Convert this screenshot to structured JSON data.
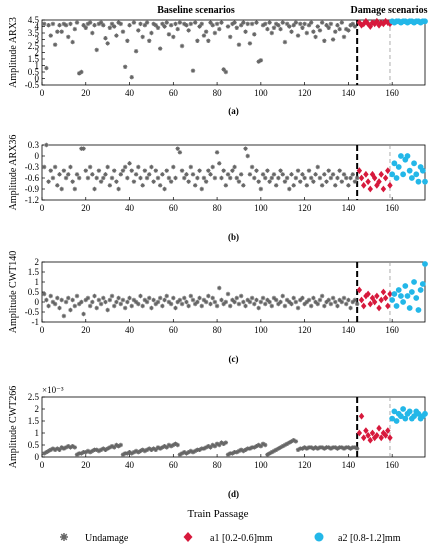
{
  "chart_data": {
    "type": "scatter",
    "header_baseline": "Baseline scenarios",
    "header_damage": "Damage scenarios",
    "xlabel": "Train Passage",
    "xlim": [
      0,
      175
    ],
    "xticks": [
      0,
      20,
      40,
      60,
      80,
      100,
      120,
      140,
      160
    ],
    "damage_onset_x": 144,
    "a2_onset_x": 159,
    "legend": {
      "undamage": "Undamage",
      "a1": "a1 [0.2-0.6]mm",
      "a2": "a2 [0.8-1.2]mm"
    },
    "colors": {
      "undamage": "#666666",
      "a1": "#d7193c",
      "a2": "#23b7e8"
    },
    "panels": [
      {
        "caption": "(a)",
        "ylabel": "Amplitude ARX3",
        "ylim": [
          -0.5,
          4.5
        ],
        "yticks": [
          "4.5",
          "4",
          "3.5",
          "3",
          "2.5",
          "2",
          "1.5",
          "1",
          "0.5",
          "0",
          "-0.5"
        ],
        "yticks_values": [
          4.5,
          4,
          3.5,
          3,
          2.5,
          2,
          1.5,
          1,
          0.5,
          0,
          -0.5
        ],
        "exponent": "",
        "series": {
          "undamage": [
            4.2,
            0.8,
            4.1,
            3.3,
            4.2,
            2.6,
            3.6,
            4.1,
            3.6,
            4.2,
            4.1,
            3.2,
            4.2,
            2.8,
            3.8,
            4.3,
            0.4,
            0.5,
            4.1,
            3.9,
            4.2,
            4.3,
            3.5,
            4.1,
            2.2,
            4.2,
            4.3,
            4.1,
            3.1,
            2.7,
            3.9,
            4.2,
            4.0,
            3.3,
            4.3,
            4.2,
            3.6,
            0.9,
            2.9,
            4.1,
            0.1,
            4.3,
            2.1,
            3.7,
            4.2,
            3.2,
            4.1,
            4.3,
            2.9,
            3.5,
            4.2,
            4.1,
            3.9,
            2.3,
            4.2,
            4.0,
            4.3,
            3.4,
            4.1,
            3.2,
            4.2,
            3.8,
            4.3,
            2.5,
            4.2,
            4.1,
            3.7,
            4.2,
            0.6,
            4.3,
            2.9,
            4.0,
            4.2,
            3.3,
            3.6,
            2.9,
            4.3,
            4.1,
            3.5,
            4.2,
            3.8,
            4.3,
            0.7,
            0.5,
            4.0,
            3.2,
            4.2,
            4.3,
            3.9,
            2.6,
            4.1,
            4.3,
            3.6,
            4.2,
            2.7,
            4.2,
            3.4,
            4.3,
            1.3,
            1.4,
            4.1,
            4.2,
            3.8,
            4.3,
            3.5,
            3.9,
            4.2,
            4.1,
            3.8,
            4.3,
            2.8,
            4.2,
            4.0,
            3.6,
            4.1,
            4.3,
            3.3,
            4.2,
            3.9,
            4.2,
            3.5,
            4.1,
            4.3,
            3.6,
            3.2,
            4.0,
            3.7,
            4.3,
            2.9,
            4.1,
            3.9,
            4.2,
            3.0,
            3.6,
            4.1,
            3.8,
            4.3,
            3.2,
            3.8,
            3.7,
            4.1,
            4.2,
            4.0
          ],
          "a1": [
            4.3,
            4.1,
            4.2,
            4.4,
            4.2,
            4.0,
            4.3,
            4.2,
            4.4,
            4.1,
            4.3,
            4.2,
            4.4,
            4.3,
            4.2
          ],
          "a2": [
            4.4,
            4.3,
            4.4,
            4.4,
            4.3,
            4.4,
            4.4,
            4.3,
            4.4,
            4.4,
            4.3,
            4.4,
            4.4,
            4.3,
            4.4,
            4.4
          ]
        }
      },
      {
        "caption": "(b)",
        "ylabel": "Amplitude ARX36",
        "ylim": [
          -1.2,
          0.3
        ],
        "yticks": [
          "0.3",
          "0",
          "-0.3",
          "-0.6",
          "-0.9",
          "-1.2"
        ],
        "yticks_values": [
          0.3,
          0,
          -0.3,
          -0.6,
          -0.9,
          -1.2
        ],
        "exponent": "",
        "series": {
          "undamage": [
            -0.3,
            0.3,
            -0.7,
            -0.4,
            -0.6,
            -0.3,
            -0.8,
            -0.5,
            -0.9,
            -0.4,
            -0.6,
            -0.5,
            -0.3,
            -0.7,
            -0.9,
            -0.5,
            -0.6,
            0.2,
            0.2,
            -0.4,
            -0.6,
            -0.3,
            -0.5,
            -0.9,
            -0.6,
            -0.4,
            -0.7,
            -0.6,
            -0.5,
            -0.3,
            -0.8,
            -0.6,
            -0.4,
            -0.7,
            -0.9,
            -0.5,
            -0.4,
            -0.3,
            -0.6,
            -0.2,
            -0.4,
            -0.7,
            -0.5,
            -0.3,
            -0.6,
            -0.8,
            -0.4,
            -0.6,
            -0.5,
            -0.3,
            -0.7,
            -0.4,
            -0.6,
            -0.8,
            -0.5,
            -0.9,
            -0.4,
            -0.6,
            -0.7,
            -0.3,
            -0.6,
            0.2,
            0.1,
            -0.4,
            -0.6,
            -0.5,
            -0.7,
            -0.3,
            -0.5,
            -0.8,
            -0.6,
            -0.4,
            -0.9,
            -0.6,
            -0.7,
            -0.4,
            -0.5,
            -0.3,
            -0.6,
            0.1,
            -0.2,
            -0.6,
            -0.4,
            -0.8,
            -0.5,
            -0.6,
            -0.4,
            -0.3,
            -0.6,
            -0.7,
            -0.5,
            -0.8,
            0.2,
            0.0,
            -0.5,
            -0.3,
            -0.6,
            -0.4,
            -0.7,
            -0.9,
            -0.5,
            -0.6,
            -0.4,
            -0.7,
            -0.6,
            -0.5,
            -0.8,
            -0.6,
            -0.4,
            -0.5,
            -0.7,
            -0.6,
            -0.9,
            -0.5,
            -0.8,
            -0.6,
            -0.4,
            -0.7,
            -0.5,
            -0.6,
            -0.8,
            -0.4,
            -0.6,
            -0.7,
            -0.5,
            -0.3,
            -0.6,
            -0.8,
            -0.5,
            -0.7,
            -0.4,
            -0.6,
            -0.5,
            -0.8,
            -0.6,
            -0.4,
            -0.7,
            -0.5,
            -0.6,
            -0.8,
            -0.6,
            -0.5,
            -0.7,
            -0.6
          ],
          "a1": [
            -0.4,
            -0.6,
            -0.8,
            -0.5,
            -0.7,
            -0.9,
            -0.5,
            -0.6,
            -0.8,
            -0.7,
            -0.5,
            -0.9,
            -0.6,
            -0.4,
            -0.8
          ],
          "a2": [
            -0.5,
            -0.2,
            -0.6,
            -0.3,
            0.0,
            -0.5,
            -0.1,
            0.0,
            -0.4,
            -0.6,
            -0.2,
            -0.5,
            -0.7,
            -0.3,
            -0.4,
            -0.7
          ]
        }
      },
      {
        "caption": "(c)",
        "ylabel": "Amplitude CWT140",
        "ylim": [
          -1,
          2
        ],
        "yticks": [
          "2",
          "1.5",
          "1",
          "0.5",
          "0",
          "-0.5",
          "-1"
        ],
        "yticks_values": [
          2,
          1.5,
          1,
          0.5,
          0,
          -0.5,
          -1
        ],
        "exponent": "",
        "series": {
          "undamage": [
            0.4,
            0.1,
            -0.2,
            0.3,
            0.0,
            -0.1,
            0.2,
            -0.3,
            0.1,
            -0.7,
            0.0,
            0.2,
            -0.4,
            0.1,
            -0.2,
            0.3,
            -0.1,
            0.0,
            -0.6,
            0.1,
            0.2,
            -0.2,
            0.0,
            0.3,
            -0.3,
            0.1,
            -0.1,
            0.2,
            0.0,
            -0.4,
            0.1,
            0.3,
            -0.2,
            0.0,
            0.2,
            -0.1,
            0.1,
            -0.3,
            0.0,
            0.2,
            -0.2,
            0.1,
            0.0,
            -0.1,
            0.3,
            -0.2,
            0.1,
            0.0,
            0.2,
            -0.3,
            0.1,
            -0.1,
            0.0,
            0.2,
            -0.2,
            0.1,
            0.3,
            0.0,
            -0.1,
            0.2,
            -0.3,
            0.0,
            0.1,
            -0.1,
            0.2,
            0.0,
            -0.2,
            0.3,
            0.1,
            -0.1,
            0.0,
            0.2,
            -0.2,
            0.1,
            0.0,
            0.3,
            -0.1,
            0.2,
            0.0,
            -0.2,
            0.7,
            0.1,
            -0.1,
            0.0,
            0.4,
            -0.2,
            0.1,
            0.0,
            0.2,
            -0.1,
            0.3,
            0.0,
            -0.2,
            0.1,
            0.0,
            0.2,
            -0.1,
            0.1,
            -0.3,
            0.0,
            0.2,
            -0.1,
            0.1,
            0.0,
            -0.2,
            0.2,
            0.1,
            -0.1,
            0.0,
            0.3,
            -0.2,
            0.1,
            0.0,
            -0.1,
            0.2,
            0.0,
            -0.3,
            0.1,
            0.2,
            -0.1,
            0.0,
            0.1,
            -0.2,
            0.2,
            0.0,
            -0.1,
            0.1,
            0.3,
            -0.2,
            0.0,
            0.1,
            -0.1,
            0.2,
            0.0,
            -0.2,
            0.1,
            0.0,
            0.2,
            -0.1,
            0.1,
            -0.3,
            0.0,
            0.1,
            -0.1
          ],
          "a1": [
            0.6,
            0.1,
            -0.2,
            0.3,
            0.4,
            -0.1,
            0.2,
            0.0,
            0.3,
            -0.3,
            0.1,
            0.5,
            0.2,
            -0.2,
            0.4
          ],
          "a2": [
            0.1,
            0.4,
            -0.2,
            0.6,
            0.3,
            0.0,
            0.8,
            0.3,
            -0.3,
            0.5,
            1.0,
            0.2,
            -0.4,
            0.6,
            0.9,
            1.9
          ]
        }
      },
      {
        "caption": "(d)",
        "ylabel": "Amplitude CWT266",
        "ylim": [
          0,
          2.5
        ],
        "yticks": [
          "2.5",
          "2",
          "1.5",
          "1",
          "0.5",
          "0"
        ],
        "yticks_values": [
          2.5,
          2,
          1.5,
          1,
          0.5,
          0
        ],
        "exponent": "×10⁻³",
        "series": {
          "undamage": [
            0.15,
            0.2,
            0.25,
            0.3,
            0.35,
            0.3,
            0.35,
            0.3,
            0.4,
            0.35,
            0.4,
            0.45,
            0.4,
            0.45,
            0.4,
            0.1,
            0.15,
            0.15,
            0.2,
            0.2,
            0.25,
            0.2,
            0.25,
            0.3,
            0.3,
            0.25,
            0.3,
            0.35,
            0.3,
            0.35,
            0.4,
            0.45,
            0.4,
            0.5,
            0.45,
            0.5,
            0.1,
            0.15,
            0.15,
            0.2,
            0.15,
            0.2,
            0.25,
            0.2,
            0.25,
            0.3,
            0.25,
            0.3,
            0.35,
            0.3,
            0.35,
            0.3,
            0.4,
            0.35,
            0.4,
            0.45,
            0.4,
            0.5,
            0.45,
            0.5,
            0.55,
            0.5,
            0.1,
            0.15,
            0.2,
            0.15,
            0.2,
            0.25,
            0.2,
            0.25,
            0.3,
            0.3,
            0.35,
            0.35,
            0.4,
            0.45,
            0.4,
            0.5,
            0.45,
            0.55,
            0.5,
            0.6,
            0.55,
            0.6,
            0.1,
            0.15,
            0.15,
            0.2,
            0.2,
            0.25,
            0.3,
            0.25,
            0.3,
            0.35,
            0.35,
            0.4,
            0.4,
            0.45,
            0.5,
            0.45,
            0.55,
            0.5,
            0.1,
            0.15,
            0.2,
            0.25,
            0.3,
            0.35,
            0.4,
            0.45,
            0.5,
            0.55,
            0.6,
            0.65,
            0.7,
            0.65,
            0.3,
            0.35,
            0.35,
            0.4,
            0.35,
            0.4,
            0.4,
            0.35,
            0.4,
            0.35,
            0.4,
            0.4,
            0.35,
            0.4,
            0.4,
            0.35,
            0.4,
            0.4,
            0.35,
            0.4,
            0.4,
            0.35,
            0.4,
            0.4,
            0.35,
            0.4,
            0.4,
            0.35
          ],
          "a1": [
            1.0,
            1.7,
            0.8,
            1.1,
            0.9,
            0.7,
            1.0,
            0.8,
            0.9,
            1.2,
            0.8,
            1.0,
            0.9,
            1.1,
            0.8
          ],
          "a2": [
            1.6,
            1.9,
            1.5,
            1.8,
            1.7,
            2.0,
            1.6,
            1.8,
            1.9,
            1.6,
            1.7,
            1.9,
            1.8,
            1.6,
            1.7,
            1.8
          ]
        }
      }
    ]
  }
}
